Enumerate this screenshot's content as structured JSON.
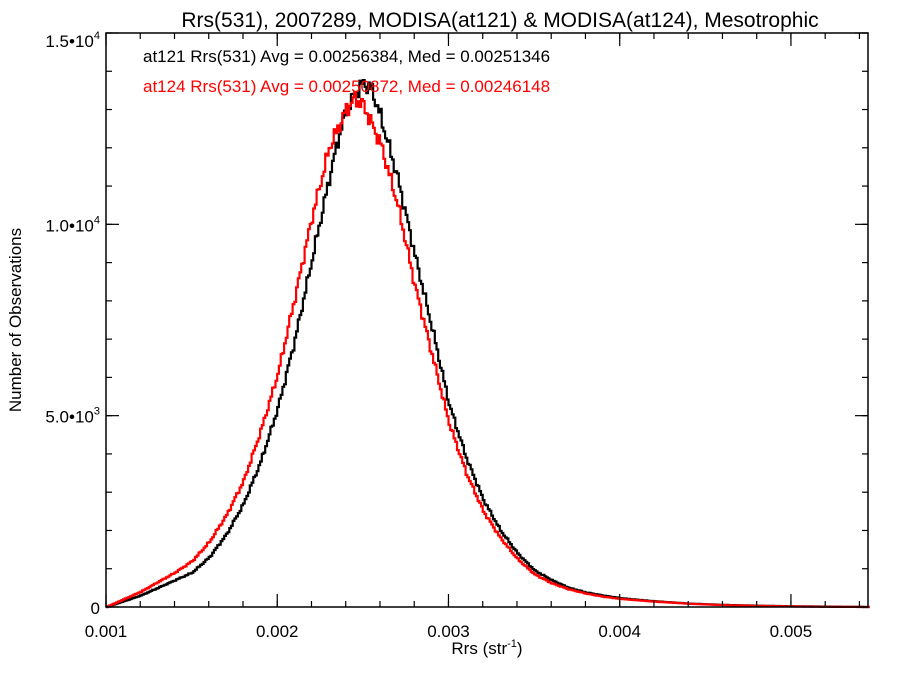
{
  "chart_data": {
    "type": "line",
    "title": "Rrs(531), 2007289, MODISA(at121) & MODISA(at124), Mesotrophic",
    "xlabel": "Rrs (str",
    "xlabel_sup": "-1",
    "xlabel_close": ")",
    "ylabel": "Number of Observations",
    "xlim": [
      0.001,
      0.00545
    ],
    "ylim": [
      0,
      15000
    ],
    "xticks": [
      {
        "value": 0.001,
        "label": "0.001"
      },
      {
        "value": 0.002,
        "label": "0.002"
      },
      {
        "value": 0.003,
        "label": "0.003"
      },
      {
        "value": 0.004,
        "label": "0.004"
      },
      {
        "value": 0.005,
        "label": "0.005"
      }
    ],
    "yticks": [
      {
        "value": 0,
        "mant": "0",
        "exp": ""
      },
      {
        "value": 5000,
        "mant": "5.0•10",
        "exp": "3"
      },
      {
        "value": 10000,
        "mant": "1.0•10",
        "exp": "4"
      },
      {
        "value": 15000,
        "mant": "1.5•10",
        "exp": "4"
      }
    ],
    "step": true,
    "grid": false,
    "annotations": [
      {
        "text": "at121 Rrs(531) Avg = 0.00256384, Med = 0.00251346",
        "color": "#000000"
      },
      {
        "text": "at124 Rrs(531) Avg = 0.00250872, Med = 0.00246148",
        "color": "#ff0000"
      }
    ],
    "series": [
      {
        "color": "#000000",
        "x": [
          0.001,
          0.0011,
          0.0012,
          0.0013,
          0.0014,
          0.0015,
          0.0016,
          0.0017,
          0.0018,
          0.0019,
          0.002,
          0.0021,
          0.0022,
          0.0023,
          0.00235,
          0.0024,
          0.00245,
          0.0025,
          0.00255,
          0.0026,
          0.0027,
          0.0028,
          0.0029,
          0.003,
          0.0031,
          0.0032,
          0.0033,
          0.0034,
          0.0035,
          0.0036,
          0.0037,
          0.0038,
          0.0039,
          0.004,
          0.0042,
          0.0044,
          0.0046,
          0.0048,
          0.005,
          0.0052,
          0.00545
        ],
        "y": [
          0,
          150,
          300,
          500,
          700,
          900,
          1300,
          1900,
          2700,
          3800,
          5200,
          7000,
          9100,
          11200,
          12200,
          13000,
          13400,
          13700,
          13500,
          12800,
          11200,
          9200,
          7300,
          5300,
          3900,
          2800,
          2000,
          1400,
          950,
          700,
          500,
          380,
          300,
          230,
          150,
          90,
          55,
          35,
          20,
          10,
          0
        ]
      },
      {
        "color": "#ff0000",
        "x": [
          0.001,
          0.0011,
          0.0012,
          0.0013,
          0.0014,
          0.0015,
          0.0016,
          0.0017,
          0.0018,
          0.0019,
          0.002,
          0.0021,
          0.0022,
          0.0023,
          0.0024,
          0.00245,
          0.0025,
          0.0026,
          0.0027,
          0.0028,
          0.0029,
          0.003,
          0.0031,
          0.0032,
          0.0033,
          0.0034,
          0.0035,
          0.0036,
          0.0037,
          0.0038,
          0.0039,
          0.004,
          0.0042,
          0.0044,
          0.0046,
          0.0048,
          0.005,
          0.0052,
          0.00545
        ],
        "y": [
          0,
          200,
          400,
          650,
          900,
          1200,
          1700,
          2400,
          3300,
          4600,
          6100,
          8100,
          10200,
          12000,
          13000,
          13300,
          13100,
          12100,
          10500,
          8400,
          6600,
          4800,
          3500,
          2500,
          1800,
          1250,
          850,
          620,
          460,
          350,
          270,
          210,
          140,
          85,
          50,
          30,
          15,
          5,
          0
        ]
      }
    ]
  }
}
